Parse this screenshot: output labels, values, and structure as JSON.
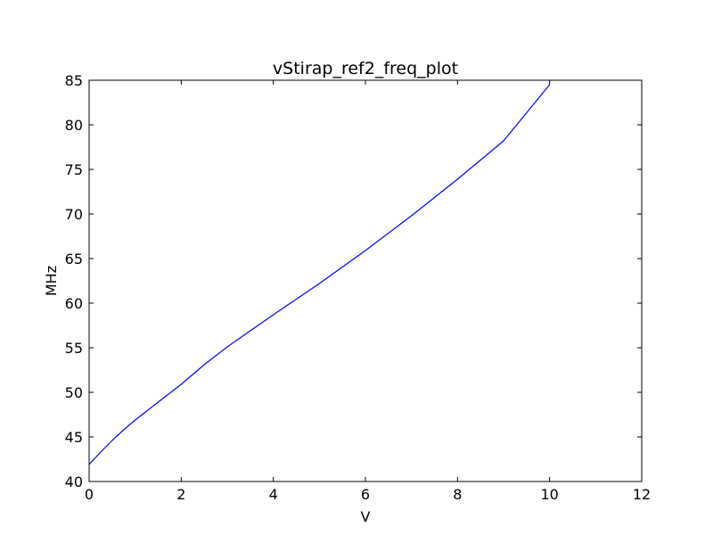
{
  "chart_data": {
    "type": "line",
    "title": "vStirap_ref2_freq_plot",
    "xlabel": "V",
    "ylabel": "MHz",
    "xlim": [
      0,
      12
    ],
    "ylim": [
      40,
      85
    ],
    "x_ticks": [
      0,
      2,
      4,
      6,
      8,
      10,
      12
    ],
    "y_ticks": [
      40,
      45,
      50,
      55,
      60,
      65,
      70,
      75,
      80,
      85
    ],
    "x_tick_labels": [
      "0",
      "2",
      "4",
      "6",
      "8",
      "10",
      "12"
    ],
    "y_tick_labels": [
      "40",
      "45",
      "50",
      "55",
      "60",
      "65",
      "70",
      "75",
      "80",
      "85"
    ],
    "grid": false,
    "series": [
      {
        "color": "#0000ff",
        "x": [
          0,
          0.25,
          0.5,
          0.75,
          1.0,
          1.5,
          2.0,
          2.5,
          3.0,
          3.5,
          4.0,
          5.0,
          6.0,
          7.0,
          8.0,
          9.0,
          10.0
        ],
        "y": [
          41.9,
          43.3,
          44.6,
          45.8,
          46.9,
          48.9,
          50.9,
          53.1,
          55.1,
          56.9,
          58.7,
          62.2,
          65.9,
          69.8,
          73.9,
          78.2,
          84.5
        ]
      }
    ]
  }
}
